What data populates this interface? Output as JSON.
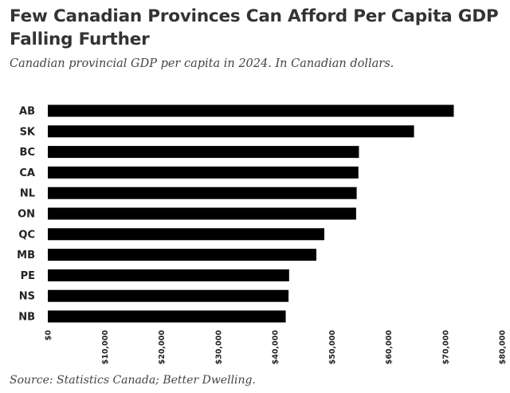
{
  "chart_data": {
    "type": "bar",
    "orientation": "horizontal",
    "title": "Few Canadian Provinces Can Afford Per Capita GDP Falling Further",
    "subtitle": "Canadian provincial GDP per capita in 2024. In Canadian dollars.",
    "source": "Source: Statistics Canada; Better Dwelling.",
    "categories": [
      "AB",
      "SK",
      "BC",
      "CA",
      "NL",
      "ON",
      "QC",
      "MB",
      "PE",
      "NS",
      "NB"
    ],
    "values": [
      71500,
      64500,
      54800,
      54700,
      54400,
      54300,
      48700,
      47300,
      42500,
      42400,
      41900
    ],
    "xlim": [
      0,
      80000
    ],
    "xticks": [
      0,
      10000,
      20000,
      30000,
      40000,
      50000,
      60000,
      70000,
      80000
    ],
    "xtick_labels": [
      "$0",
      "$10,000",
      "$20,000",
      "$30,000",
      "$40,000",
      "$50,000",
      "$60,000",
      "$70,000",
      "$80,000"
    ],
    "xlabel": "",
    "ylabel": "",
    "grid": false,
    "bar_color": "#000000"
  }
}
